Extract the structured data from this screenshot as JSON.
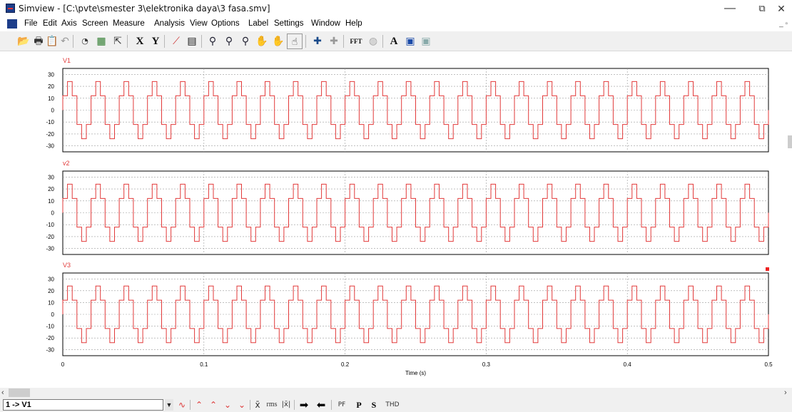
{
  "window": {
    "title": "Simview - [C:\\pvte\\smester 3\\elektronika daya\\3 fasa.smv]",
    "minimize": "—",
    "restore": "⧉",
    "close": "✕",
    "mdi_controls": "_ ▫"
  },
  "menu": [
    "File",
    "Edit",
    "Axis",
    "Screen",
    "Measure",
    "Analysis",
    "View",
    "Options",
    "Label",
    "Settings",
    "Window",
    "Help"
  ],
  "toolbar": {
    "x_label": "X",
    "y_label": "Y",
    "fft_label": "FFT",
    "a_label": "A"
  },
  "chart_data": [
    {
      "type": "line",
      "title": "V1",
      "xlabel": "",
      "ylabel": "",
      "xlim": [
        0,
        0.5
      ],
      "ylim": [
        -35,
        35
      ],
      "yticks": [
        30,
        20,
        10,
        0,
        -10,
        -20,
        -30
      ],
      "grid": true,
      "waveform": "six-step square wave",
      "levels": [
        12,
        24,
        12,
        -12,
        -24,
        -12
      ],
      "period": 0.02,
      "phase_shift": 0,
      "series": [
        {
          "color": "#e23a3a"
        }
      ]
    },
    {
      "type": "line",
      "title": "v2",
      "xlabel": "",
      "ylabel": "",
      "xlim": [
        0,
        0.5
      ],
      "ylim": [
        -35,
        35
      ],
      "yticks": [
        30,
        20,
        10,
        0,
        -10,
        -20,
        -30
      ],
      "grid": true,
      "waveform": "six-step square wave",
      "levels": [
        12,
        24,
        12,
        -12,
        -24,
        -12
      ],
      "period": 0.02,
      "phase_shift": 0,
      "series": [
        {
          "color": "#e23a3a"
        }
      ]
    },
    {
      "type": "line",
      "title": "V3",
      "xlabel": "Time (s)",
      "ylabel": "",
      "xlim": [
        0,
        0.5
      ],
      "ylim": [
        -35,
        35
      ],
      "yticks": [
        30,
        20,
        10,
        0,
        -10,
        -20,
        -30
      ],
      "xticks": [
        "0",
        "0.1",
        "0.2",
        "0.3",
        "0.4",
        "0.5"
      ],
      "grid": true,
      "waveform": "six-step square wave",
      "levels": [
        12,
        24,
        12,
        -12,
        -24,
        -12
      ],
      "period": 0.02,
      "phase_shift": 0,
      "series": [
        {
          "color": "#e23a3a"
        }
      ]
    }
  ],
  "bottom": {
    "selector_value": "1 -> V1",
    "pf_label": "PF",
    "p_label": "P",
    "s_label": "S",
    "thd_label": "THD",
    "rms_label": "rms",
    "mean_label": "x̄"
  }
}
